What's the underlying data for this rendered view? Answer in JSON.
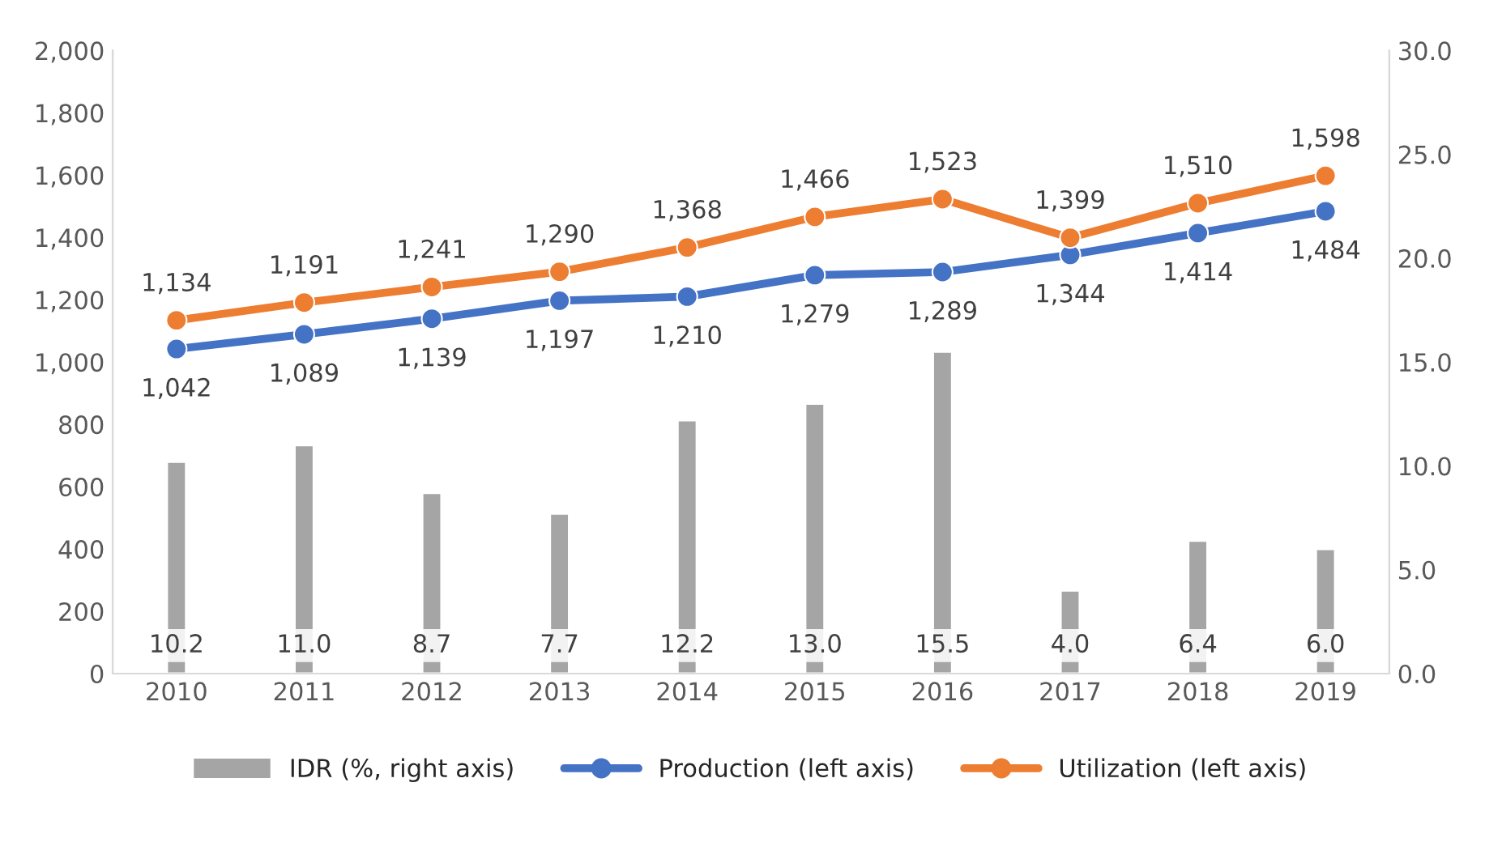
{
  "chart_data": {
    "type": "bar",
    "categories": [
      "2010",
      "2011",
      "2012",
      "2013",
      "2014",
      "2015",
      "2016",
      "2017",
      "2018",
      "2019"
    ],
    "series": [
      {
        "name": "IDR (%, right axis)",
        "axis": "y2",
        "color": "#a5a5a5",
        "values": [
          10.2,
          11.0,
          8.7,
          7.7,
          12.2,
          13.0,
          15.5,
          4.0,
          6.4,
          6.0
        ],
        "value_labels": [
          "10.2",
          "11.0",
          "8.7",
          "7.7",
          "12.2",
          "13.0",
          "15.5",
          "4.0",
          "6.4",
          "6.0"
        ]
      },
      {
        "name": "Production (left axis)",
        "type": "line",
        "color": "#4472c4",
        "values": [
          1042,
          1089,
          1139,
          1197,
          1210,
          1279,
          1289,
          1344,
          1414,
          1484
        ],
        "value_labels": [
          "1,042",
          "1,089",
          "1,139",
          "1,197",
          "1,210",
          "1,279",
          "1,289",
          "1,344",
          "1,414",
          "1,484"
        ]
      },
      {
        "name": "Utilization (left axis)",
        "type": "line",
        "color": "#ed7d31",
        "values": [
          1134,
          1191,
          1241,
          1290,
          1368,
          1466,
          1523,
          1399,
          1510,
          1598
        ],
        "value_labels": [
          "1,134",
          "1,191",
          "1,241",
          "1,290",
          "1,368",
          "1,466",
          "1,523",
          "1,399",
          "1,510",
          "1,598"
        ]
      }
    ],
    "ylim": [
      0,
      2000
    ],
    "yticks": [
      0,
      200,
      400,
      600,
      800,
      {
        "value": 1000,
        "label": "1,000"
      },
      {
        "value": 1200,
        "label": "1,200"
      },
      {
        "value": 1400,
        "label": "1,400"
      },
      {
        "value": 1600,
        "label": "1,600"
      },
      {
        "value": 1800,
        "label": "1,800"
      },
      {
        "value": 2000,
        "label": "2,000"
      }
    ],
    "y2lim": [
      0,
      30
    ],
    "y2ticks": [
      {
        "value": 0,
        "label": "0.0"
      },
      {
        "value": 5,
        "label": "5.0"
      },
      {
        "value": 10,
        "label": "10.0"
      },
      {
        "value": 15,
        "label": "15.0"
      },
      {
        "value": 20,
        "label": "20.0"
      },
      {
        "value": 25,
        "label": "25.0"
      },
      {
        "value": 30,
        "label": "30.0"
      }
    ],
    "marker": "circle",
    "line_style": "solid",
    "legend": "bottom"
  }
}
